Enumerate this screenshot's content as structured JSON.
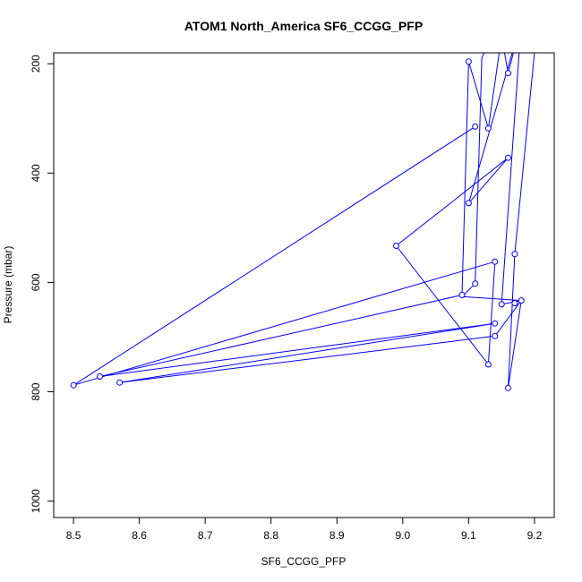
{
  "chart_data": {
    "type": "line",
    "title": "ATOM1 North_America SF6_CCGG_PFP",
    "xlabel": "SF6_CCGG_PFP",
    "ylabel": "Pressure (mbar)",
    "xlim": [
      8.47,
      9.23
    ],
    "ylim": [
      1030,
      180
    ],
    "y_reversed": true,
    "x_ticks": [
      "8.5",
      "8.6",
      "8.7",
      "8.8",
      "8.9",
      "9.0",
      "9.1",
      "9.2"
    ],
    "y_ticks": [
      "200",
      "400",
      "600",
      "800",
      "1000"
    ],
    "grid": false,
    "legend": "none",
    "series_color": "#0000ff",
    "series": [
      {
        "x": [
          9.11,
          8.5,
          9.14,
          9.13,
          8.99,
          9.16,
          9.1,
          9.18,
          9.15,
          9.18,
          9.14,
          8.57,
          9.14,
          8.54,
          9.09,
          9.1,
          9.13,
          9.15,
          9.16,
          9.18
        ],
        "y": [
          315,
          788,
          562,
          750,
          533,
          372,
          455,
          123,
          640,
          633,
          698,
          783,
          675,
          772,
          623,
          196,
          318,
          150,
          217,
          125
        ]
      },
      {
        "x": [
          9.13,
          9.14,
          9.12,
          9.11,
          9.09,
          9.18,
          9.16,
          9.17,
          9.2
        ],
        "y": [
          122,
          131,
          190,
          602,
          626,
          633,
          793,
          548,
          180
        ]
      }
    ],
    "points": [
      {
        "x": 9.11,
        "y": 315
      },
      {
        "x": 8.5,
        "y": 788
      },
      {
        "x": 9.14,
        "y": 562
      },
      {
        "x": 9.13,
        "y": 750
      },
      {
        "x": 8.99,
        "y": 533
      },
      {
        "x": 9.16,
        "y": 372
      },
      {
        "x": 9.1,
        "y": 455
      },
      {
        "x": 9.15,
        "y": 640
      },
      {
        "x": 9.18,
        "y": 633
      },
      {
        "x": 9.14,
        "y": 698
      },
      {
        "x": 8.57,
        "y": 783
      },
      {
        "x": 9.14,
        "y": 675
      },
      {
        "x": 8.54,
        "y": 772
      },
      {
        "x": 9.09,
        "y": 623
      },
      {
        "x": 9.1,
        "y": 196
      },
      {
        "x": 9.13,
        "y": 318
      },
      {
        "x": 9.16,
        "y": 217
      },
      {
        "x": 9.11,
        "y": 602
      },
      {
        "x": 9.16,
        "y": 793
      },
      {
        "x": 9.17,
        "y": 548
      },
      {
        "x": 9.17,
        "y": 638
      }
    ]
  }
}
